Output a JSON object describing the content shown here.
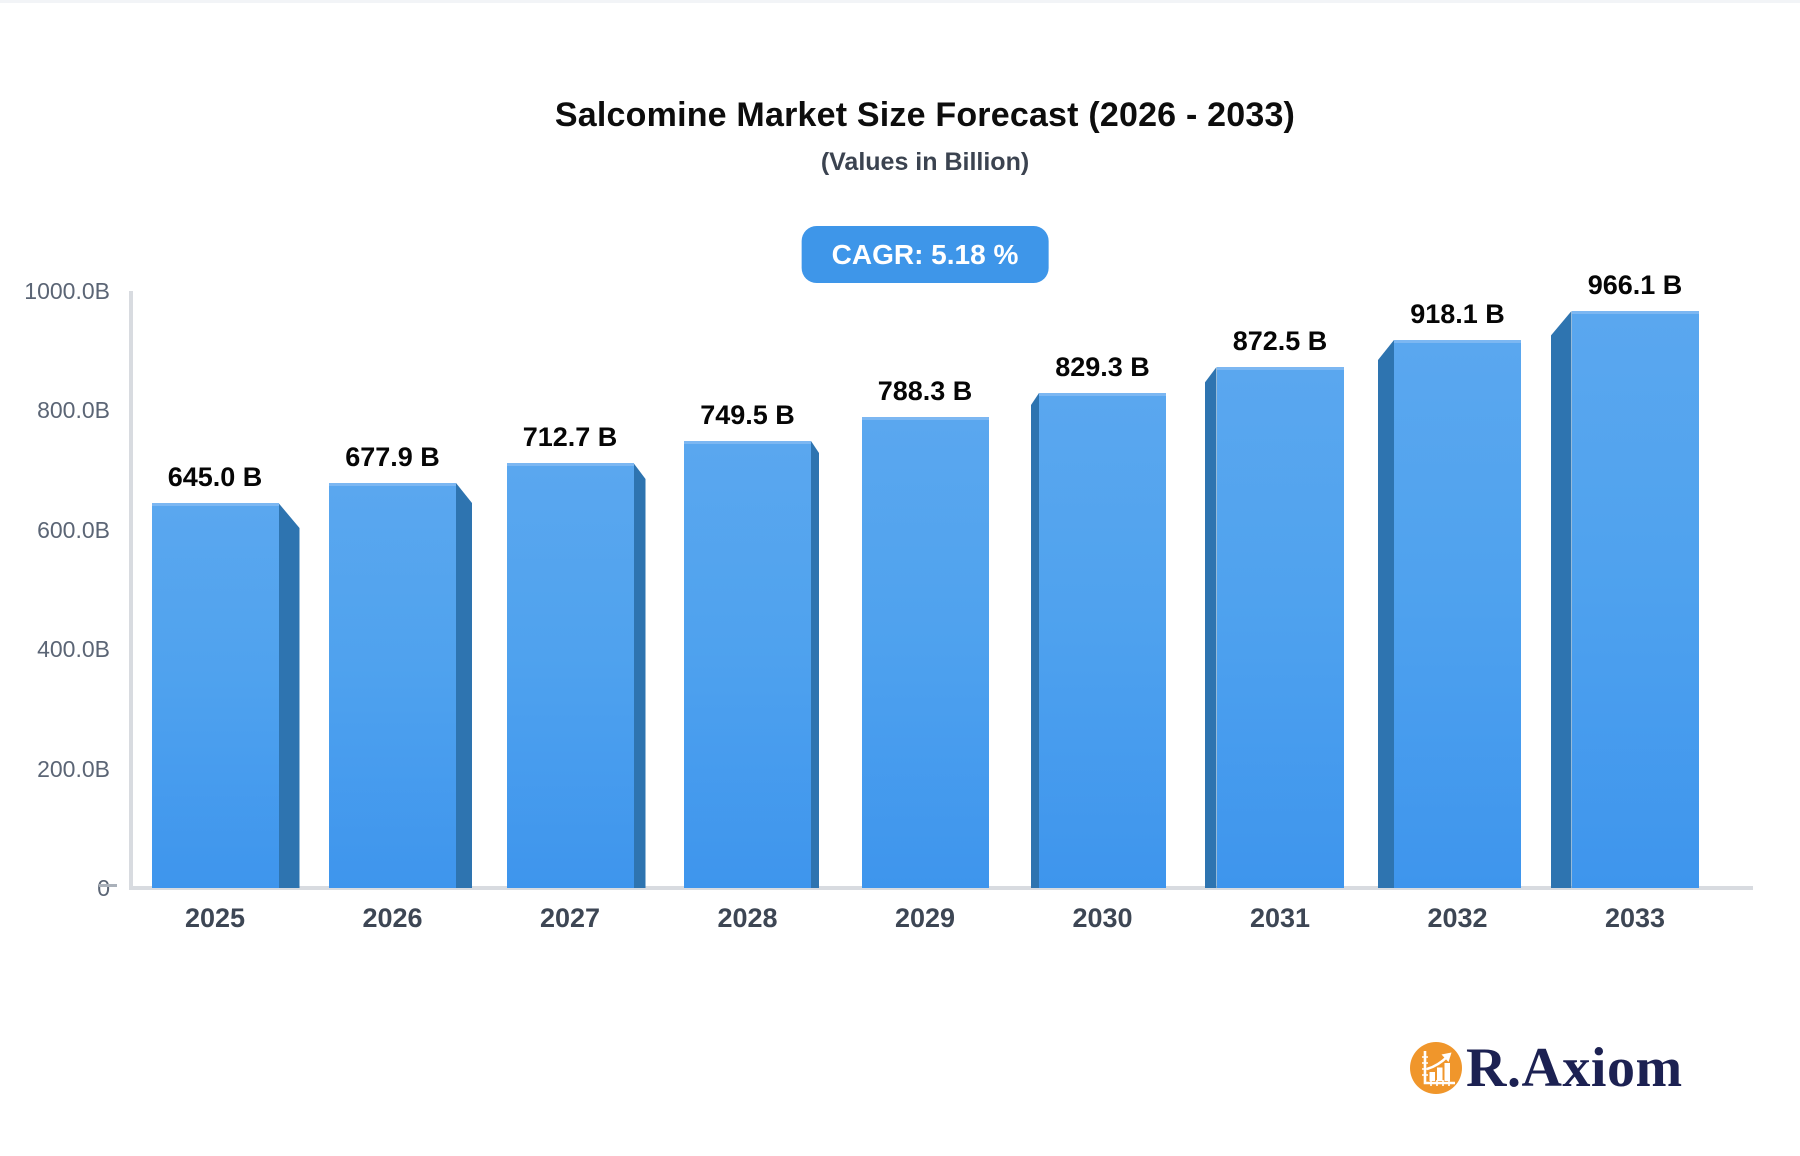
{
  "header": {
    "title": "Salcomine Market Size Forecast (2026 - 2033)",
    "subtitle": "(Values in Billion)",
    "cagr_badge": "CAGR: 5.18 %"
  },
  "chart_data": {
    "type": "bar",
    "title": "Salcomine Market Size Forecast (2026 - 2033)",
    "subtitle": "(Values in Billion)",
    "unit": "Billion",
    "cagr_percent": 5.18,
    "categories": [
      "2025",
      "2026",
      "2027",
      "2028",
      "2029",
      "2030",
      "2031",
      "2032",
      "2033"
    ],
    "values": [
      645.0,
      677.9,
      712.7,
      749.5,
      788.3,
      829.3,
      872.5,
      918.1,
      966.1
    ],
    "value_labels": [
      "645.0 B",
      "677.9 B",
      "712.7 B",
      "749.5 B",
      "788.3 B",
      "829.3 B",
      "872.5 B",
      "918.1 B",
      "966.1 B"
    ],
    "y_ticks": [
      "1000.0B",
      "800.0B",
      "600.0B",
      "400.0B",
      "200.0B",
      "0"
    ],
    "ylim": [
      0,
      1000
    ],
    "grid": "off",
    "legend": "none",
    "style": "3d-bars-perspective-center",
    "colors": {
      "bar_face_top": "#5aa7ef",
      "bar_face_bottom": "#3e95ed",
      "bar_top_highlight": "#7cb7f2",
      "bar_side_face": "#2e74b0",
      "badge_background": "#3e96e9",
      "badge_text": "#ffffff",
      "axis_line": "#d8dbe0",
      "tick_text": "#5b6575",
      "category_text": "#3d4654",
      "value_text": "#060606"
    }
  },
  "branding": {
    "name": "R.Axiom",
    "icon": "bar-chart-growth-icon",
    "icon_color": "#f0962b",
    "text_color": "#1c2152"
  }
}
